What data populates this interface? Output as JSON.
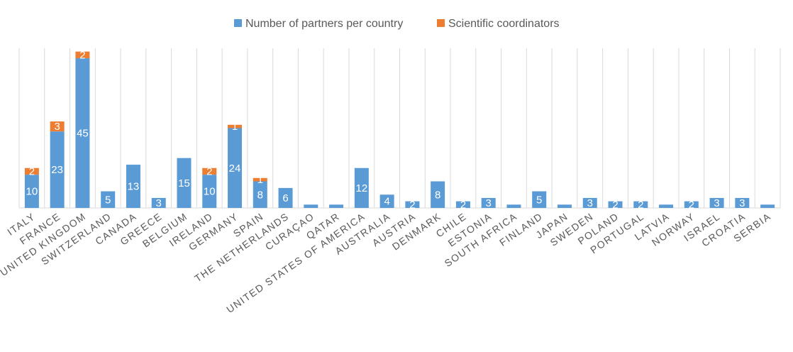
{
  "chart_data": {
    "type": "bar",
    "stacked": true,
    "categories": [
      "ITALY",
      "FRANCE",
      "UNITED KINGDOM",
      "SWITZERLAND",
      "CANADA",
      "GREECE",
      "BELGIUM",
      "IRELAND",
      "GERMANY",
      "SPAIN",
      "THE NETHERLANDS",
      "CURAÇAO",
      "QATAR",
      "UNITED STATES OF AMERICA",
      "AUSTRALIA",
      "AUSTRIA",
      "DENMARK",
      "CHILE",
      "ESTONIA",
      "SOUTH AFRICA",
      "FINLAND",
      "JAPAN",
      "SWEDEN",
      "POLAND",
      "PORTUGAL",
      "LATVIA",
      "NORWAY",
      "ISRAEL",
      "CROATIA",
      "SERBIA"
    ],
    "series": [
      {
        "name": "Number of partners per country",
        "color": "#5B9BD5",
        "values": [
          10,
          23,
          45,
          5,
          13,
          3,
          15,
          10,
          24,
          8,
          6,
          1,
          1,
          12,
          4,
          2,
          8,
          2,
          3,
          1,
          5,
          1,
          3,
          2,
          2,
          1,
          2,
          3,
          3,
          1
        ],
        "labels": [
          "10",
          "23",
          "45",
          "5",
          "13",
          "3",
          "15",
          "10",
          "24",
          "8",
          "6",
          "",
          "",
          "12",
          "4",
          "2",
          "8",
          "2",
          "3",
          "",
          "5",
          "",
          "3",
          "2",
          "2",
          "",
          "2",
          "3",
          "3",
          ""
        ]
      },
      {
        "name": "Scientific coordinators",
        "color": "#ED7D31",
        "values": [
          2,
          3,
          2,
          0,
          0,
          0,
          0,
          2,
          1,
          1,
          0,
          0,
          0,
          0,
          0,
          0,
          0,
          0,
          0,
          0,
          0,
          0,
          0,
          0,
          0,
          0,
          0,
          0,
          0,
          0
        ],
        "labels": [
          "2",
          "3",
          "2",
          "",
          "",
          "",
          "",
          "2",
          "1",
          "1",
          "",
          "",
          "",
          "",
          "",
          "",
          "",
          "",
          "",
          "",
          "",
          "",
          "",
          "",
          "",
          "",
          "",
          "",
          "",
          ""
        ]
      }
    ],
    "ylim": [
      0,
      48
    ],
    "grid": "vertical category separators",
    "legend_position": "top-center",
    "title": "",
    "xlabel": "",
    "ylabel": ""
  }
}
